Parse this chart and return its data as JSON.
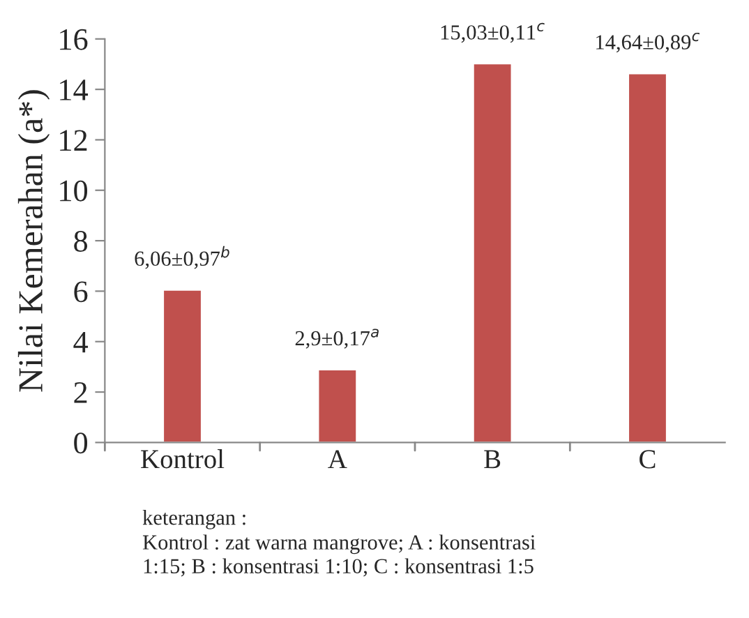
{
  "chart_data": {
    "type": "bar",
    "ylabel": "Nilai Kemerahan (a*)",
    "categories": [
      "Kontrol",
      "A",
      "B",
      "C"
    ],
    "values": [
      6.06,
      2.9,
      15.03,
      14.64
    ],
    "value_labels": [
      "6,06±0,97$^{b}$",
      "2,9±0,17$^{a}$",
      "15,03±0,11$^{c}$",
      "14,64±0,89$^{c}$"
    ],
    "color": "#c0504d",
    "ylim": [
      0,
      16
    ],
    "yticks": [
      0,
      2,
      4,
      6,
      8,
      10,
      12,
      14,
      16
    ],
    "grid": false,
    "legend": false,
    "annotations": [
      "keterangan :",
      "Kontrol : zat warna mangrove; A : konsentrasi\n1:15; B : konsentrasi 1:10; C : konsentrasi 1:5"
    ]
  }
}
